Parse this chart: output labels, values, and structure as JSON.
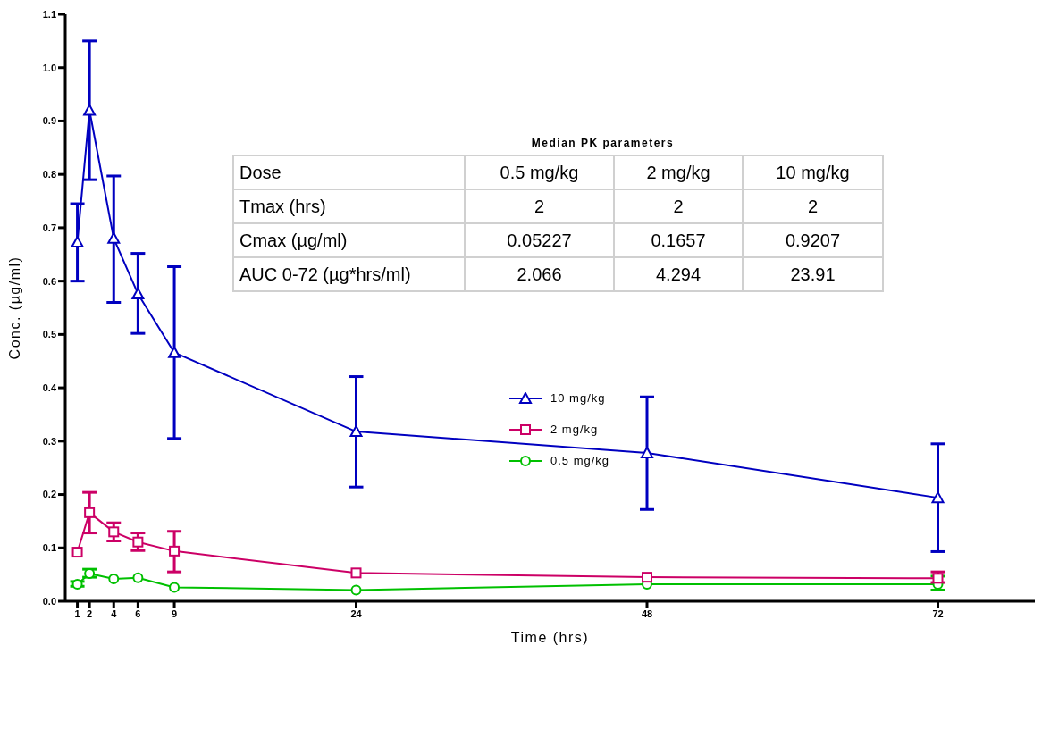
{
  "chart_data": {
    "type": "line",
    "xlabel": "Time (hrs)",
    "ylabel": "Conc. (µg/ml)",
    "x": [
      1,
      2,
      4,
      6,
      9,
      24,
      48,
      72
    ],
    "xlim": [
      0,
      80
    ],
    "xticks": [
      1,
      2,
      4,
      6,
      9,
      24,
      48,
      72
    ],
    "ylim": [
      0,
      1.1
    ],
    "yticks": [
      {
        "value": 0,
        "label": "0.0"
      },
      0.1,
      0.2,
      0.3,
      0.4,
      0.5,
      0.6,
      0.7,
      0.8,
      0.9,
      {
        "value": 1,
        "label": "1.0"
      },
      1.1
    ],
    "grid": false,
    "legend": "right",
    "line_style": "solid",
    "series": [
      {
        "name": "10 mg/kg",
        "color": "#0000c0",
        "marker": "triangle",
        "values": [
          0.673,
          0.92,
          0.68,
          0.576,
          0.466,
          0.318,
          0.278,
          0.194
        ],
        "errors": [
          [
            0.6,
            0.745
          ],
          [
            0.79,
            1.05
          ],
          [
            0.56,
            0.797
          ],
          [
            0.502,
            0.652
          ],
          [
            0.305,
            0.627
          ],
          [
            0.214,
            0.421
          ],
          [
            0.172,
            0.383
          ],
          [
            0.093,
            0.295
          ]
        ]
      },
      {
        "name": "2 mg/kg",
        "color": "#cc0066",
        "marker": "square",
        "values": [
          0.092,
          0.166,
          0.13,
          0.111,
          0.094,
          0.053,
          0.045,
          0.043
        ],
        "errors": [
          null,
          [
            0.128,
            0.204
          ],
          [
            0.113,
            0.147
          ],
          [
            0.095,
            0.128
          ],
          [
            0.055,
            0.131
          ],
          null,
          null,
          [
            0.035,
            0.055
          ]
        ]
      },
      {
        "name": "0.5 mg/kg",
        "color": "#00c000",
        "marker": "circle",
        "values": [
          0.032,
          0.052,
          0.042,
          0.044,
          0.026,
          0.021,
          0.032,
          0.032
        ],
        "errors": [
          [
            0.028,
            0.037
          ],
          [
            0.045,
            0.06
          ],
          null,
          null,
          null,
          null,
          null,
          [
            0.021,
            0.047
          ]
        ]
      }
    ],
    "annotations": [
      "Median PK parameters",
      "Dose",
      "0.5 mg/kg",
      "2 mg/kg",
      "10 mg/kg",
      "Tmax (hrs)",
      "2",
      "2",
      "2",
      "Cmax (µg/ml)",
      "0.05227",
      "0.1657",
      "0.9207",
      "AUC 0-72 (µg*hrs/ml)",
      "2.066",
      "4.294",
      "23.91"
    ]
  }
}
